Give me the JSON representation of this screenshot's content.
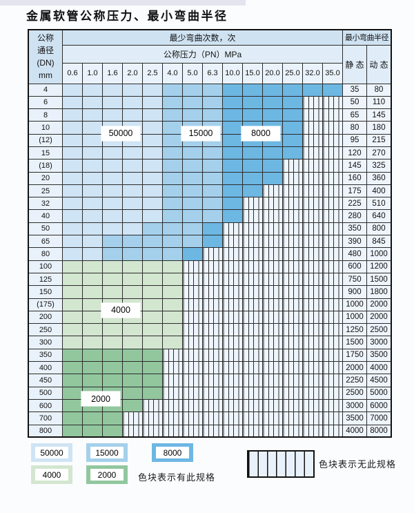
{
  "title": "金属软管公称压力、最小弯曲半径",
  "table": {
    "corner_lines": [
      "公称",
      "通径",
      "(DN)",
      "mm"
    ],
    "bend_times_header": "最少弯曲次数，次",
    "pressure_header": "公称压力（PN）MPa",
    "radius_header": "最小弯曲半径",
    "static_label": "静 态",
    "dynamic_label": "动 态",
    "pressures": [
      "0.6",
      "1.0",
      "1.6",
      "2.0",
      "2.5",
      "4.0",
      "5.0",
      "6.3",
      "10.0",
      "15.0",
      "20.0",
      "25.0",
      "32.0",
      "35.0"
    ],
    "zone_legend_key": {
      "A": "50000",
      "B": "15000",
      "C": "8000",
      "D": "4000",
      "E": "2000",
      "X": "no-spec-hatch"
    },
    "rows": [
      {
        "dn": "4",
        "cells": "AAAAABBBCCCCCC",
        "static": "35",
        "dynamic": "80"
      },
      {
        "dn": "6",
        "cells": "AAAAABBBCCCCXX",
        "static": "50",
        "dynamic": "110"
      },
      {
        "dn": "8",
        "cells": "AAAAABBBCCCCXX",
        "static": "65",
        "dynamic": "145"
      },
      {
        "dn": "10",
        "cells": "AAAAABBBCCCCXX",
        "static": "80",
        "dynamic": "180"
      },
      {
        "dn": "(12)",
        "cells": "AAAAABBBCCCCXX",
        "static": "95",
        "dynamic": "215"
      },
      {
        "dn": "15",
        "cells": "AAAAABBBCCCCXX",
        "static": "120",
        "dynamic": "270"
      },
      {
        "dn": "(18)",
        "cells": "AAAAABBBCCCXXX",
        "static": "145",
        "dynamic": "325"
      },
      {
        "dn": "20",
        "cells": "AAAAABBBCCCXXX",
        "static": "160",
        "dynamic": "360"
      },
      {
        "dn": "25",
        "cells": "AAAAABBBCCXXXX",
        "static": "175",
        "dynamic": "400"
      },
      {
        "dn": "32",
        "cells": "AAAAABBBCXXXXX",
        "static": "225",
        "dynamic": "510"
      },
      {
        "dn": "40",
        "cells": "AAAAABBBCXXXXX",
        "static": "280",
        "dynamic": "640"
      },
      {
        "dn": "50",
        "cells": "AAAABBBCXXXXXX",
        "static": "350",
        "dynamic": "800"
      },
      {
        "dn": "65",
        "cells": "AABBBBBCXXXXXX",
        "static": "390",
        "dynamic": "845"
      },
      {
        "dn": "80",
        "cells": "AABBBBCXXXXXXX",
        "static": "480",
        "dynamic": "1000"
      },
      {
        "dn": "100",
        "cells": "DDDDDDXXXXXXXX",
        "static": "600",
        "dynamic": "1200"
      },
      {
        "dn": "125",
        "cells": "DDDDDDXXXXXXXX",
        "static": "750",
        "dynamic": "1500"
      },
      {
        "dn": "150",
        "cells": "DDDDDDXXXXXXXX",
        "static": "900",
        "dynamic": "1800"
      },
      {
        "dn": "(175)",
        "cells": "DDDDDDXXXXXXXX",
        "static": "1000",
        "dynamic": "2000"
      },
      {
        "dn": "200",
        "cells": "DDDDDDXXXXXXXX",
        "static": "1000",
        "dynamic": "2000"
      },
      {
        "dn": "250",
        "cells": "DDDDDDXXXXXXXX",
        "static": "1250",
        "dynamic": "2500"
      },
      {
        "dn": "300",
        "cells": "DDDDDDXXXXXXXX",
        "static": "1500",
        "dynamic": "3000"
      },
      {
        "dn": "350",
        "cells": "EEEEEXXXXXXXXX",
        "static": "1750",
        "dynamic": "3500"
      },
      {
        "dn": "400",
        "cells": "EEEEEXXXXXXXXX",
        "static": "2000",
        "dynamic": "4000"
      },
      {
        "dn": "450",
        "cells": "EEEEEXXXXXXXXX",
        "static": "2250",
        "dynamic": "4500"
      },
      {
        "dn": "500",
        "cells": "EEEEEXXXXXXXXX",
        "static": "2500",
        "dynamic": "5000"
      },
      {
        "dn": "600",
        "cells": "EEEEXXXXXXXXXX",
        "static": "3000",
        "dynamic": "6000"
      },
      {
        "dn": "700",
        "cells": "EEEXXXXXXXXXXX",
        "static": "3500",
        "dynamic": "7000"
      },
      {
        "dn": "800",
        "cells": "EEEXXXXXXXXXXX",
        "static": "4000",
        "dynamic": "8000"
      }
    ]
  },
  "zone_labels": [
    {
      "text": "50000",
      "row1": 3,
      "row2": 4,
      "col1": 2,
      "col2": 3
    },
    {
      "text": "15000",
      "row1": 3,
      "row2": 4,
      "col1": 6,
      "col2": 7
    },
    {
      "text": "8000",
      "row1": 3,
      "row2": 4,
      "col1": 9,
      "col2": 10
    },
    {
      "text": "4000",
      "row1": 17,
      "row2": 18,
      "col1": 2,
      "col2": 3
    },
    {
      "text": "2000",
      "row1": 24,
      "row2": 25,
      "col1": 1,
      "col2": 2
    }
  ],
  "legend": {
    "blocks": [
      {
        "label": "50000",
        "zone": "A"
      },
      {
        "label": "15000",
        "zone": "B"
      },
      {
        "label": "8000",
        "zone": "C"
      },
      {
        "label": "4000",
        "zone": "D"
      },
      {
        "label": "2000",
        "zone": "E"
      }
    ],
    "available_note": "色块表示有此规格",
    "unavailable_note": "色块表示无此规格"
  },
  "colors": {
    "zone_50000": "#cfe4f4",
    "zone_15000": "#a4d0ec",
    "zone_8000": "#6db7e3",
    "zone_4000": "#d3e6d0",
    "zone_2000": "#92c79e",
    "hatch_bg": "#eef5fc",
    "grid_line": "#2b2b2b"
  }
}
